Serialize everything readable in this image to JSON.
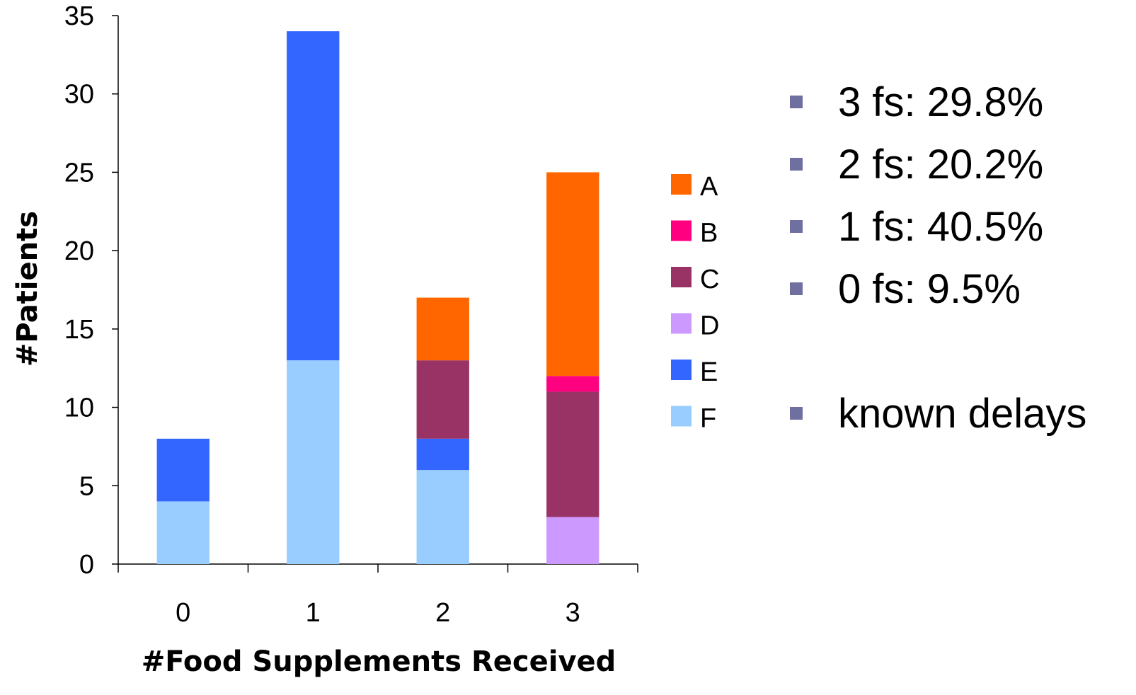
{
  "chart_data": {
    "type": "bar",
    "stacked": true,
    "xlabel": "#Food Supplements Received",
    "ylabel": "#Patients",
    "ylim": [
      0,
      35
    ],
    "yticks": [
      "0",
      "5",
      "10",
      "15",
      "20",
      "25",
      "30",
      "35"
    ],
    "categories": [
      "0",
      "1",
      "2",
      "3"
    ],
    "series": [
      {
        "name": "F",
        "color": "#99ccff",
        "values": [
          4,
          13,
          6,
          0
        ]
      },
      {
        "name": "E",
        "color": "#3366ff",
        "values": [
          4,
          21,
          2,
          0
        ]
      },
      {
        "name": "D",
        "color": "#cc99ff",
        "values": [
          0,
          0,
          0,
          3
        ]
      },
      {
        "name": "C",
        "color": "#993366",
        "values": [
          0,
          0,
          5,
          8
        ]
      },
      {
        "name": "B",
        "color": "#ff0080",
        "values": [
          0,
          0,
          0,
          1
        ]
      },
      {
        "name": "A",
        "color": "#ff6600",
        "values": [
          0,
          0,
          4,
          13
        ]
      }
    ],
    "legend_order": [
      "A",
      "B",
      "C",
      "D",
      "E",
      "F"
    ],
    "legend_position": "right",
    "grid": false
  },
  "notes": {
    "bullet_color": "#7070a0",
    "items": [
      {
        "text": "3 fs: 29.8%"
      },
      {
        "text": "2 fs: 20.2%"
      },
      {
        "text": "1 fs: 40.5%"
      },
      {
        "text": "0 fs: 9.5%"
      },
      {
        "text": "known delays"
      }
    ]
  }
}
